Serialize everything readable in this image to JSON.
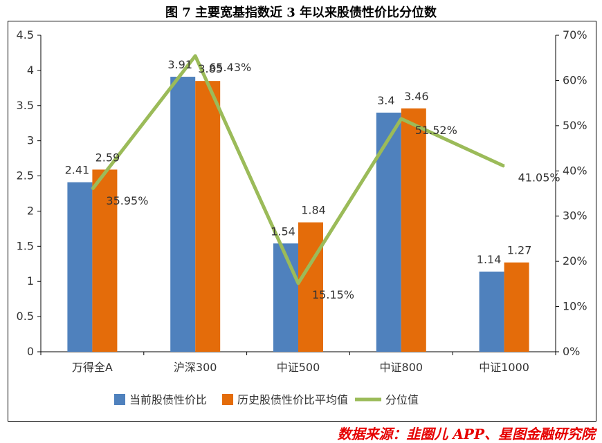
{
  "title": "图 7 主要宽基指数近 3 年以来股债性价比分位数",
  "source": "数据来源：韭圈儿 APP、星图金融研究院",
  "chart_data": {
    "type": "bar",
    "categories": [
      "万得全A",
      "沪深300",
      "中证500",
      "中证800",
      "中证1000"
    ],
    "series": [
      {
        "name": "当前股债性价比",
        "type": "bar",
        "axis": "left",
        "color": "#4f81bd",
        "values": [
          2.41,
          3.91,
          1.54,
          3.4,
          1.14
        ],
        "labels": [
          "2.41",
          "3.91",
          "1.54",
          "3.4",
          "1.14"
        ]
      },
      {
        "name": "历史股债性价比平均值",
        "type": "bar",
        "axis": "left",
        "color": "#e46c0a",
        "values": [
          2.59,
          3.85,
          1.84,
          3.46,
          1.27
        ],
        "labels": [
          "2.59",
          "3.85",
          "1.84",
          "3.46",
          "1.27"
        ]
      },
      {
        "name": "分位值",
        "type": "line",
        "axis": "right",
        "color": "#9bbb59",
        "values": [
          35.95,
          65.43,
          15.15,
          51.52,
          41.05
        ],
        "labels": [
          "35.95%",
          "65.43%",
          "15.15%",
          "51.52%",
          "41.05%"
        ]
      }
    ],
    "y_left": {
      "min": 0,
      "max": 4.5,
      "ticks": [
        "0",
        "0.5",
        "1",
        "1.5",
        "2",
        "2.5",
        "3",
        "3.5",
        "4",
        "4.5"
      ]
    },
    "y_right": {
      "min": 0,
      "max": 70,
      "ticks": [
        "0%",
        "10%",
        "20%",
        "30%",
        "40%",
        "50%",
        "60%",
        "70%"
      ]
    },
    "grid": false,
    "legend": "bottom"
  }
}
